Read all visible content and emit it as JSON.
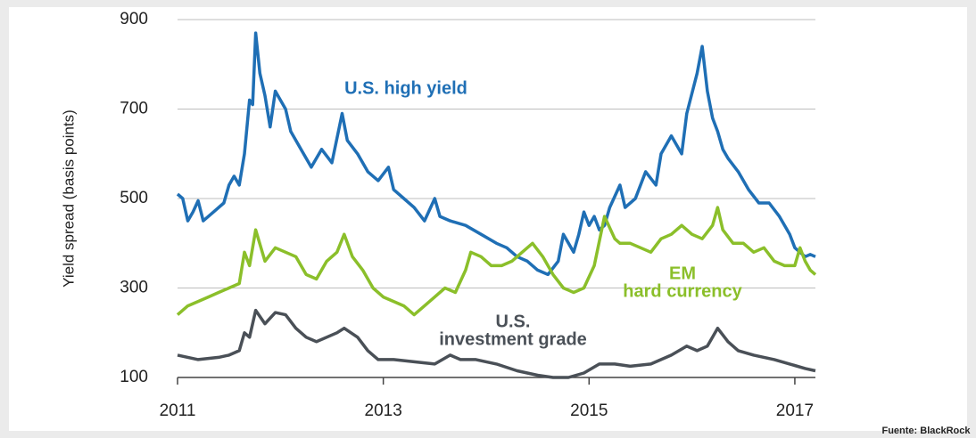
{
  "chart_data": {
    "type": "line",
    "y_label": "Yield spread (basis points)",
    "source": "Fuente: BlackRock",
    "xlim": [
      2011,
      2017.2
    ],
    "xticks": [
      2011,
      2013,
      2015,
      2017
    ],
    "ylim": [
      100,
      900
    ],
    "yticks": [
      100,
      300,
      500,
      700,
      900
    ],
    "grid": true,
    "series": [
      {
        "name": [
          "U.S. high yield"
        ],
        "color": "#1f6fb5",
        "x": [
          2011.0,
          2011.05,
          2011.1,
          2011.15,
          2011.2,
          2011.25,
          2011.35,
          2011.45,
          2011.5,
          2011.55,
          2011.6,
          2011.65,
          2011.7,
          2011.73,
          2011.76,
          2011.8,
          2011.85,
          2011.9,
          2011.95,
          2012.0,
          2012.05,
          2012.1,
          2012.2,
          2012.3,
          2012.4,
          2012.5,
          2012.6,
          2012.65,
          2012.75,
          2012.85,
          2012.95,
          2013.05,
          2013.1,
          2013.2,
          2013.3,
          2013.4,
          2013.5,
          2013.55,
          2013.65,
          2013.8,
          2013.95,
          2014.1,
          2014.2,
          2014.3,
          2014.4,
          2014.5,
          2014.6,
          2014.7,
          2014.75,
          2014.85,
          2014.9,
          2014.95,
          2015.0,
          2015.05,
          2015.1,
          2015.15,
          2015.2,
          2015.3,
          2015.35,
          2015.45,
          2015.55,
          2015.65,
          2015.7,
          2015.8,
          2015.9,
          2015.95,
          2016.05,
          2016.1,
          2016.15,
          2016.2,
          2016.25,
          2016.3,
          2016.35,
          2016.45,
          2016.55,
          2016.65,
          2016.75,
          2016.85,
          2016.95,
          2017.0,
          2017.05,
          2017.1,
          2017.15,
          2017.2
        ],
        "values": [
          510,
          500,
          450,
          470,
          495,
          450,
          470,
          490,
          530,
          550,
          530,
          600,
          720,
          710,
          870,
          780,
          730,
          660,
          740,
          720,
          700,
          650,
          610,
          570,
          610,
          580,
          690,
          630,
          600,
          560,
          540,
          570,
          520,
          500,
          480,
          450,
          500,
          460,
          450,
          440,
          420,
          400,
          390,
          370,
          360,
          340,
          330,
          360,
          420,
          380,
          420,
          470,
          440,
          460,
          430,
          440,
          480,
          530,
          480,
          500,
          560,
          530,
          600,
          640,
          600,
          690,
          780,
          840,
          740,
          680,
          650,
          610,
          590,
          560,
          520,
          490,
          490,
          460,
          420,
          390,
          380,
          370,
          375,
          370
        ]
      },
      {
        "name": [
          "EM",
          "hard currency"
        ],
        "color": "#8bbf2a",
        "x": [
          2011.0,
          2011.1,
          2011.2,
          2011.3,
          2011.4,
          2011.5,
          2011.6,
          2011.65,
          2011.7,
          2011.76,
          2011.85,
          2011.95,
          2012.05,
          2012.15,
          2012.25,
          2012.35,
          2012.45,
          2012.55,
          2012.62,
          2012.7,
          2012.8,
          2012.9,
          2013.0,
          2013.1,
          2013.2,
          2013.3,
          2013.4,
          2013.5,
          2013.6,
          2013.7,
          2013.8,
          2013.85,
          2013.95,
          2014.05,
          2014.15,
          2014.25,
          2014.35,
          2014.45,
          2014.55,
          2014.65,
          2014.75,
          2014.85,
          2014.95,
          2015.05,
          2015.15,
          2015.25,
          2015.3,
          2015.4,
          2015.5,
          2015.6,
          2015.7,
          2015.8,
          2015.9,
          2016.0,
          2016.1,
          2016.2,
          2016.25,
          2016.3,
          2016.4,
          2016.5,
          2016.6,
          2016.7,
          2016.8,
          2016.9,
          2017.0,
          2017.05,
          2017.1,
          2017.15,
          2017.2
        ],
        "values": [
          240,
          260,
          270,
          280,
          290,
          300,
          310,
          380,
          350,
          430,
          360,
          390,
          380,
          370,
          330,
          320,
          360,
          380,
          420,
          370,
          340,
          300,
          280,
          270,
          260,
          240,
          260,
          280,
          300,
          290,
          340,
          380,
          370,
          350,
          350,
          360,
          380,
          400,
          370,
          330,
          300,
          290,
          300,
          350,
          460,
          410,
          400,
          400,
          390,
          380,
          410,
          420,
          440,
          420,
          410,
          440,
          480,
          430,
          400,
          400,
          380,
          390,
          360,
          350,
          350,
          390,
          360,
          340,
          330
        ]
      },
      {
        "name": [
          "U.S.",
          "investment grade"
        ],
        "color": "#4a5057",
        "x": [
          2011.0,
          2011.2,
          2011.4,
          2011.5,
          2011.6,
          2011.65,
          2011.7,
          2011.76,
          2011.85,
          2011.95,
          2012.05,
          2012.15,
          2012.25,
          2012.35,
          2012.45,
          2012.55,
          2012.62,
          2012.75,
          2012.85,
          2012.95,
          2013.1,
          2013.3,
          2013.5,
          2013.65,
          2013.75,
          2013.9,
          2014.1,
          2014.3,
          2014.5,
          2014.65,
          2014.8,
          2014.95,
          2015.1,
          2015.25,
          2015.4,
          2015.6,
          2015.8,
          2015.95,
          2016.05,
          2016.15,
          2016.25,
          2016.35,
          2016.45,
          2016.6,
          2016.8,
          2016.95,
          2017.1,
          2017.2
        ],
        "values": [
          150,
          140,
          145,
          150,
          160,
          200,
          190,
          250,
          220,
          245,
          240,
          210,
          190,
          180,
          190,
          200,
          210,
          190,
          160,
          140,
          140,
          135,
          130,
          150,
          140,
          140,
          130,
          115,
          105,
          100,
          100,
          110,
          130,
          130,
          125,
          130,
          150,
          170,
          160,
          170,
          210,
          180,
          160,
          150,
          140,
          130,
          120,
          115
        ]
      }
    ]
  }
}
